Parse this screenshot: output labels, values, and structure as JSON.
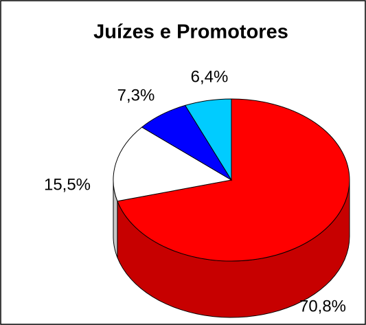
{
  "chart_data": {
    "type": "pie",
    "title": "Juízes e Promotores",
    "categories": [
      null,
      null,
      null,
      null
    ],
    "values": [
      70.8,
      15.5,
      7.3,
      6.4
    ],
    "value_labels": [
      "70,8%",
      "15,5%",
      "7,3%",
      "6,4%"
    ],
    "colors": [
      "#ff0000",
      "#ffffff",
      "#0000ff",
      "#00ccff"
    ]
  }
}
